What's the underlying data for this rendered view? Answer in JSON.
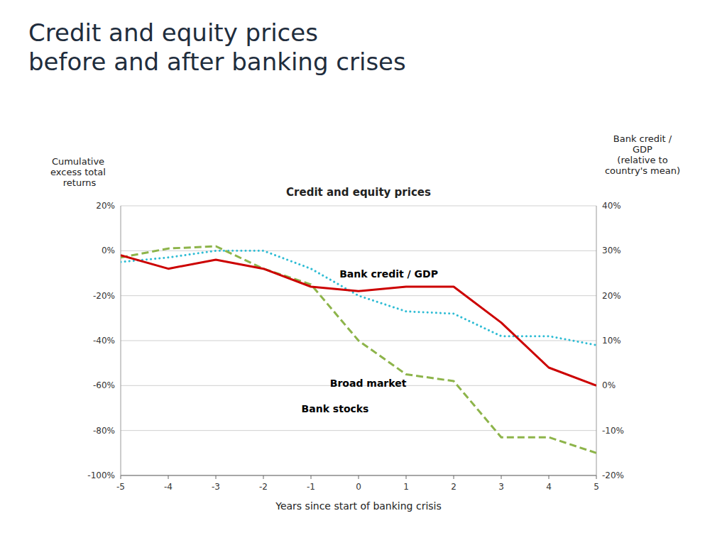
{
  "chart_data": {
    "type": "line",
    "title": "Credit and equity prices\nbefore and after banking crises",
    "subtitle": "Credit and equity prices",
    "xlabel": "Years since start of banking crisis",
    "ylabel": "Cumulative\nexcess total\n  returns",
    "y2label": "Bank credit /\nGDP\n(relative to\ncountry's mean)",
    "x": [
      -5,
      -4,
      -3,
      -2,
      -1,
      0,
      1,
      2,
      3,
      4,
      5
    ],
    "xlim": [
      -5,
      5
    ],
    "xticks": [
      -5,
      -4,
      -3,
      -2,
      -1,
      0,
      1,
      2,
      3,
      4,
      5
    ],
    "ylim": [
      -100,
      20
    ],
    "yticks": [
      {
        "value": 20,
        "label": "20%"
      },
      {
        "value": 0,
        "label": "0%"
      },
      {
        "value": -20,
        "label": "-20%"
      },
      {
        "value": -40,
        "label": "-40%"
      },
      {
        "value": -60,
        "label": "-60%"
      },
      {
        "value": -80,
        "label": "-80%"
      },
      {
        "value": -100,
        "label": "-100%"
      }
    ],
    "y2lim": [
      -20,
      40
    ],
    "y2ticks": [
      {
        "value": 40,
        "label": "40%"
      },
      {
        "value": 30,
        "label": "30%"
      },
      {
        "value": 20,
        "label": "20%"
      },
      {
        "value": 10,
        "label": "10%"
      },
      {
        "value": 0,
        "label": "0%"
      },
      {
        "value": -10,
        "label": "-10%"
      },
      {
        "value": -20,
        "label": "-20%"
      }
    ],
    "grid": true,
    "series": [
      {
        "name": "Broad market",
        "color": "#2EBCD4",
        "line_style": "dotted",
        "values": [
          -5,
          -3,
          0,
          0,
          -8,
          -20,
          -27,
          -28,
          -38,
          -38,
          -42
        ]
      },
      {
        "name": "Bank stocks",
        "color": "#8DB44A",
        "line_style": "dashed",
        "values": [
          -3,
          1,
          2,
          -8,
          -15,
          -40,
          -55,
          -58,
          -83,
          -83,
          -90
        ]
      },
      {
        "name": "Bank credit / GDP",
        "color": "#CC0000",
        "line_style": "solid",
        "axis": "y2",
        "values": [
          29,
          26,
          28,
          26,
          22,
          21,
          22,
          22,
          14,
          4,
          0
        ]
      }
    ]
  }
}
